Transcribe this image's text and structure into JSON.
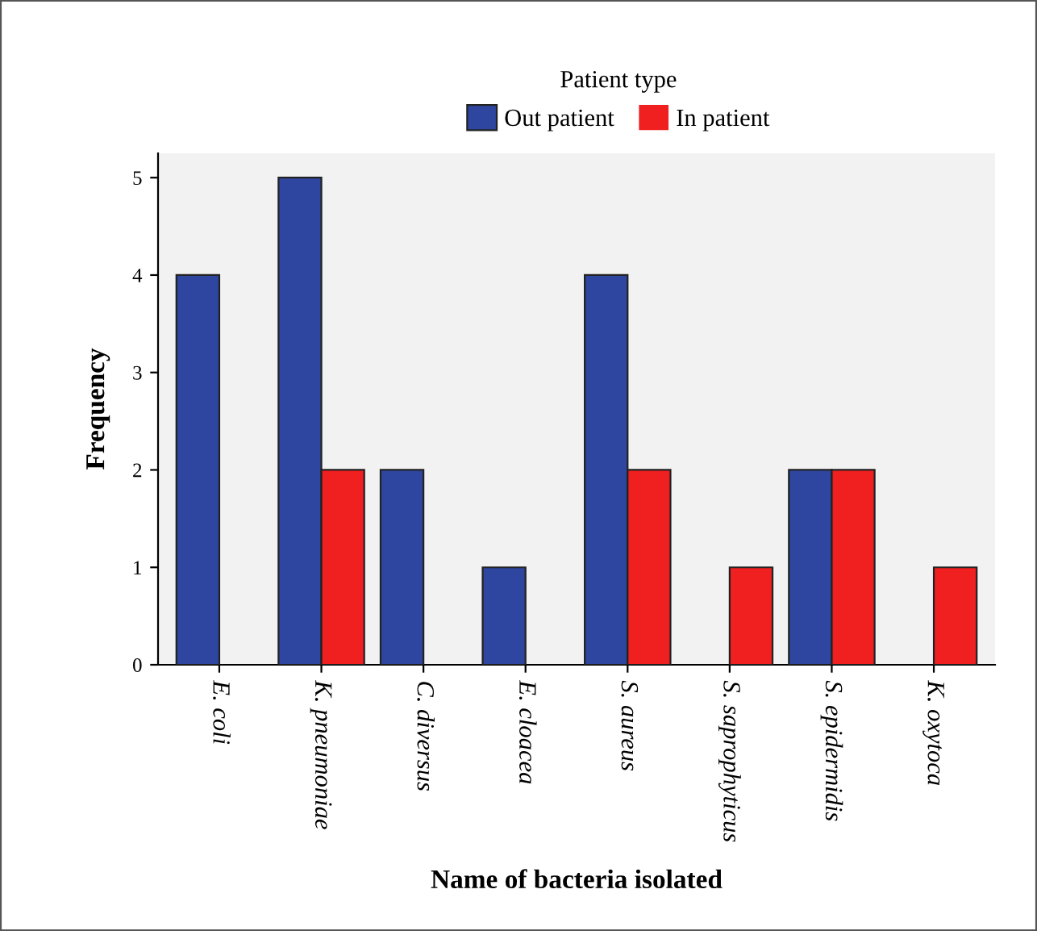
{
  "chart_data": {
    "type": "bar",
    "xlabel": "Name of bacteria isolated",
    "ylabel": "Frequency",
    "legend_title": "Patient type",
    "legend": "top",
    "categories": [
      "E. coli",
      "K. pneumoniae",
      "C. diversus",
      "E. cloacea",
      "S. aureus",
      "S. saprophyticus",
      "S. epidermidis",
      "K. oxytoca"
    ],
    "series": [
      {
        "name": "Out patient",
        "color": "#2e46a0",
        "values": [
          4,
          5,
          2,
          1,
          4,
          0,
          2,
          0
        ]
      },
      {
        "name": "In patient",
        "color": "#f02020",
        "values": [
          0,
          2,
          0,
          0,
          2,
          1,
          2,
          1
        ]
      }
    ],
    "ylim": [
      0,
      5.25
    ],
    "yticks": [
      0,
      1,
      2,
      3,
      4,
      5
    ],
    "grid": false
  }
}
